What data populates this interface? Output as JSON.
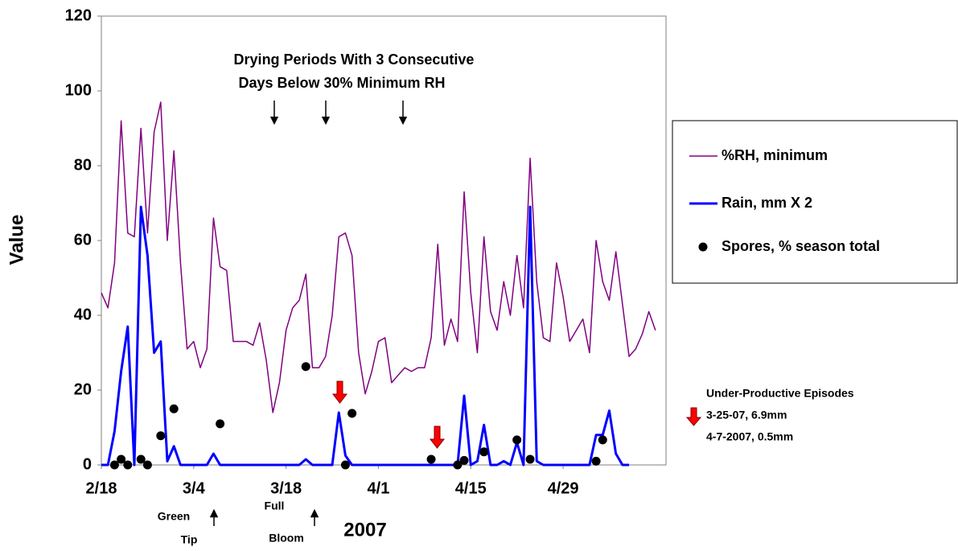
{
  "chart_data": {
    "type": "line",
    "y_label": "Value",
    "x_label": "2007",
    "xlim": [
      0,
      85.6
    ],
    "xticks": [
      {
        "value": 0,
        "label": "2/18"
      },
      {
        "value": 14,
        "label": "3/4"
      },
      {
        "value": 28,
        "label": "3/18"
      },
      {
        "value": 42,
        "label": "4/1"
      },
      {
        "value": 56,
        "label": "4/15"
      },
      {
        "value": 70,
        "label": "4/29"
      }
    ],
    "ylim": [
      0,
      120
    ],
    "yticks": [
      0,
      20,
      40,
      60,
      80,
      100,
      120
    ],
    "series": [
      {
        "name": "%RH, minimum",
        "color": "#800080",
        "style": "line",
        "width": 1.5,
        "x": [
          0,
          1,
          2,
          3,
          4,
          5,
          6,
          7,
          8,
          9,
          10,
          11,
          12,
          13,
          14,
          15,
          16,
          17,
          18,
          19,
          20,
          21,
          22,
          23,
          24,
          25,
          26,
          27,
          28,
          29,
          30,
          31,
          32,
          33,
          34,
          35,
          36,
          37,
          38,
          39,
          40,
          41,
          42,
          43,
          44,
          45,
          46,
          47,
          48,
          49,
          50,
          51,
          52,
          53,
          54,
          55,
          56,
          57,
          58,
          59,
          60,
          61,
          62,
          63,
          64,
          65,
          66,
          67,
          68,
          69,
          70,
          71,
          72,
          73,
          74,
          75,
          76,
          77,
          78,
          79,
          80,
          81,
          82,
          83,
          84
        ],
        "values": [
          46,
          42,
          54,
          92,
          62,
          61,
          90,
          62,
          89,
          97,
          60,
          84,
          54,
          31,
          33,
          26,
          31,
          66,
          53,
          52,
          33,
          33,
          33,
          32,
          38,
          28,
          14,
          22,
          36,
          42,
          44,
          51,
          26,
          26,
          29,
          40,
          61,
          62,
          56,
          30,
          19,
          25,
          33,
          34,
          22,
          24,
          26,
          25,
          26,
          26,
          34,
          59,
          32,
          39,
          33,
          73,
          46,
          30,
          61,
          41,
          36,
          49,
          40,
          56,
          42,
          82,
          49,
          34,
          33,
          54,
          45,
          33,
          36,
          39,
          30,
          60,
          49,
          44,
          57,
          43,
          29,
          31,
          35,
          41,
          36
        ]
      },
      {
        "name": "Rain, mm X 2",
        "color": "#0000ff",
        "style": "line",
        "width": 3,
        "x": [
          0,
          1,
          2,
          3,
          4,
          5,
          6,
          7,
          8,
          9,
          10,
          11,
          12,
          13,
          14,
          15,
          16,
          17,
          18,
          19,
          20,
          21,
          22,
          23,
          24,
          25,
          26,
          27,
          28,
          29,
          30,
          31,
          32,
          33,
          34,
          35,
          36,
          37,
          38,
          39,
          40,
          41,
          42,
          43,
          44,
          45,
          46,
          47,
          48,
          49,
          50,
          51,
          52,
          53,
          54,
          55,
          56,
          57,
          58,
          59,
          60,
          61,
          62,
          63,
          64,
          65,
          66,
          67,
          68,
          69,
          70,
          71,
          72,
          73,
          74,
          75,
          76,
          77,
          78,
          79,
          80
        ],
        "values": [
          0,
          0,
          9,
          25,
          37,
          0,
          69,
          56,
          30,
          33,
          1,
          5,
          0,
          0,
          0,
          0,
          0,
          3,
          0,
          0,
          0,
          0,
          0,
          0,
          0,
          0,
          0,
          0,
          0,
          0,
          0,
          1.5,
          0,
          0,
          0,
          0,
          14,
          2.5,
          0,
          0,
          0,
          0,
          0,
          0,
          0,
          0,
          0,
          0,
          0,
          0,
          0,
          0,
          0,
          0,
          0,
          18.5,
          0,
          1,
          10.7,
          0,
          0,
          1,
          0,
          6,
          0,
          69,
          1,
          0,
          0,
          0,
          0,
          0,
          0,
          0,
          0,
          8,
          8,
          14.5,
          3,
          0,
          0
        ]
      },
      {
        "name": "Spores, % season total",
        "color": "#000000",
        "style": "points",
        "x": [
          2,
          3,
          4,
          6,
          7,
          9,
          11,
          18,
          31,
          37,
          38,
          50,
          54,
          55,
          58,
          63,
          65,
          75,
          76
        ],
        "values": [
          0,
          1.5,
          0,
          1.5,
          0,
          7.8,
          15,
          11,
          26.3,
          0,
          13.8,
          1.5,
          0,
          1.2,
          3.5,
          6.7,
          1.5,
          1,
          6.7
        ]
      }
    ],
    "annotations": [
      "Drying Periods With 3 Consecutive",
      "Days  Below 30% Minimum RH",
      "Green",
      "Tip",
      "Full",
      "Bloom",
      "Under-Productive Episodes",
      "3-25-07,  6.9mm",
      "4-7-2007,  0.5mm"
    ]
  }
}
